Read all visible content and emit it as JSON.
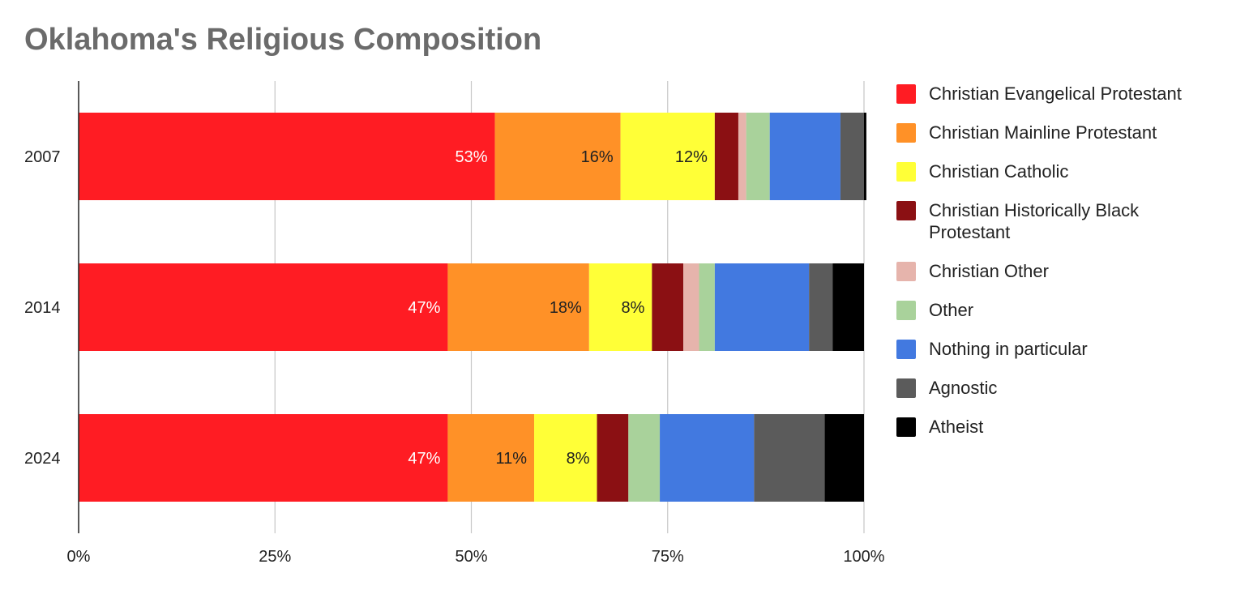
{
  "title": "Oklahoma's Religious Composition",
  "colors": {
    "Christian Evangelical Protestant": "#ff1c23",
    "Christian Mainline Protestant": "#ff9127",
    "Christian Catholic": "#ffff37",
    "Christian Historically Black Protestant": "#8b1013",
    "Christian Other": "#e6b4ac",
    "Other": "#a9d29b",
    "Nothing in particular": "#4279e0",
    "Agnostic": "#5b5b5b",
    "Atheist": "#000000"
  },
  "chart_data": {
    "type": "bar",
    "orientation": "horizontal",
    "stacked": true,
    "title": "Oklahoma's Religious Composition",
    "categories": [
      "2007",
      "2014",
      "2024"
    ],
    "x_ticks": [
      "0%",
      "25%",
      "50%",
      "75%",
      "100%"
    ],
    "xlim": [
      0,
      100
    ],
    "grid": true,
    "legend_position": "right",
    "series": [
      {
        "name": "Christian Evangelical Protestant",
        "values": [
          53,
          47,
          47
        ],
        "labels": [
          "53%",
          "47%",
          "47%"
        ]
      },
      {
        "name": "Christian Mainline Protestant",
        "values": [
          16,
          18,
          11
        ],
        "labels": [
          "16%",
          "18%",
          "11%"
        ]
      },
      {
        "name": "Christian Catholic",
        "values": [
          12,
          8,
          8
        ],
        "labels": [
          "12%",
          "8%",
          "8%"
        ]
      },
      {
        "name": "Christian Historically Black Protestant",
        "values": [
          3,
          4,
          4
        ],
        "labels": [
          "",
          "",
          ""
        ]
      },
      {
        "name": "Christian Other",
        "values": [
          1,
          2,
          0
        ],
        "labels": [
          "",
          "",
          ""
        ]
      },
      {
        "name": "Other",
        "values": [
          3,
          2,
          4
        ],
        "labels": [
          "",
          "",
          ""
        ]
      },
      {
        "name": "Nothing in particular",
        "values": [
          9,
          12,
          12
        ],
        "labels": [
          "",
          "",
          ""
        ]
      },
      {
        "name": "Agnostic",
        "values": [
          3,
          3,
          9
        ],
        "labels": [
          "",
          "",
          ""
        ]
      },
      {
        "name": "Atheist",
        "values": [
          0.3,
          4,
          5
        ],
        "labels": [
          "",
          "",
          ""
        ]
      }
    ]
  }
}
